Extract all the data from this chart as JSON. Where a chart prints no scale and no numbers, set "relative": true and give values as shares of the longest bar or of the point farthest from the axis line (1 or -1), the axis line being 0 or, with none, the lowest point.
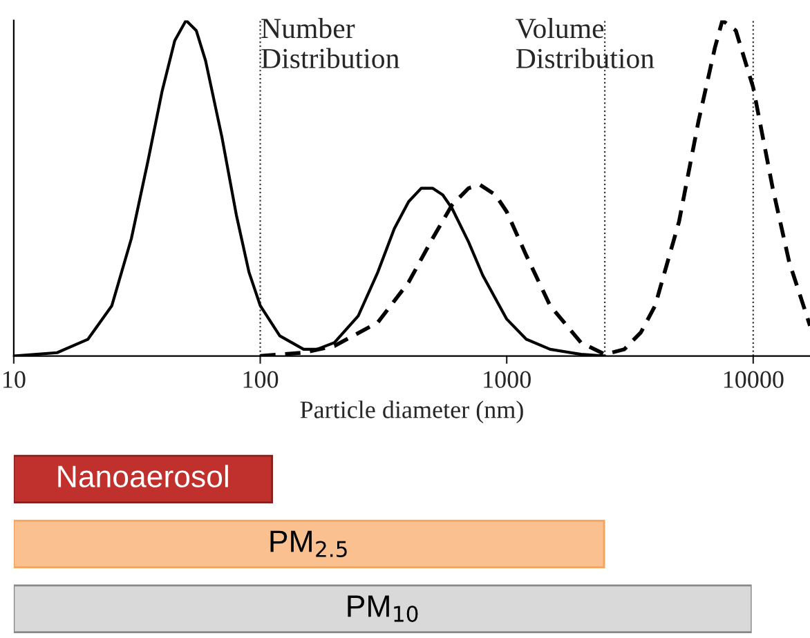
{
  "chart_data": [
    {
      "type": "line",
      "relative": true,
      "log": "x",
      "xlabel": "Particle diameter (nm)",
      "xlim": [
        10,
        17000
      ],
      "xticks": [
        10,
        100,
        1000,
        10000
      ],
      "grid": false,
      "legend": false,
      "series": [
        {
          "name": "Number\nDistribution",
          "color": "#000000",
          "line_style": "solid",
          "x": [
            10,
            15,
            20,
            25,
            30,
            35,
            40,
            45,
            50,
            55,
            60,
            70,
            80,
            90,
            100,
            120,
            150,
            170,
            200,
            250,
            300,
            350,
            400,
            450,
            500,
            550,
            600,
            700,
            800,
            1000,
            1200,
            1500,
            2000,
            2500
          ],
          "values": [
            0.0,
            0.01,
            0.05,
            0.15,
            0.35,
            0.58,
            0.79,
            0.94,
            1.0,
            0.97,
            0.88,
            0.65,
            0.42,
            0.25,
            0.15,
            0.06,
            0.02,
            0.02,
            0.04,
            0.12,
            0.25,
            0.38,
            0.46,
            0.5,
            0.5,
            0.48,
            0.44,
            0.34,
            0.24,
            0.11,
            0.05,
            0.02,
            0.005,
            0.0
          ]
        },
        {
          "name": "Volume\nDistribution",
          "color": "#000000",
          "line_style": "dashed",
          "x": [
            100,
            150,
            200,
            300,
            400,
            500,
            600,
            700,
            780,
            900,
            1000,
            1200,
            1500,
            2000,
            2500,
            3000,
            3500,
            4000,
            5000,
            6000,
            7000,
            7500,
            8500,
            10000,
            12000,
            14000,
            17000
          ],
          "values": [
            0.0,
            0.01,
            0.03,
            0.1,
            0.22,
            0.35,
            0.45,
            0.5,
            0.51,
            0.48,
            0.43,
            0.3,
            0.15,
            0.04,
            0.005,
            0.02,
            0.07,
            0.15,
            0.4,
            0.7,
            0.92,
            1.0,
            0.97,
            0.8,
            0.5,
            0.28,
            0.09
          ]
        }
      ],
      "ref_lines": [
        {
          "axis": "x",
          "value": 100,
          "line_style": "dotted"
        },
        {
          "axis": "x",
          "value": 2500,
          "line_style": "dotted"
        },
        {
          "axis": "x",
          "value": 10000,
          "line_style": "dotted"
        }
      ]
    },
    {
      "type": "bar",
      "orientation": "horizontal",
      "relative": true,
      "categories": [
        "Nanoaerosol",
        "PM$_{2.5}$",
        "PM$_{10}$"
      ],
      "values": [
        0.35,
        0.8,
        1.0
      ],
      "colors": [
        "#c0302c",
        "#fbc08f",
        "#d9d9d9"
      ]
    }
  ]
}
